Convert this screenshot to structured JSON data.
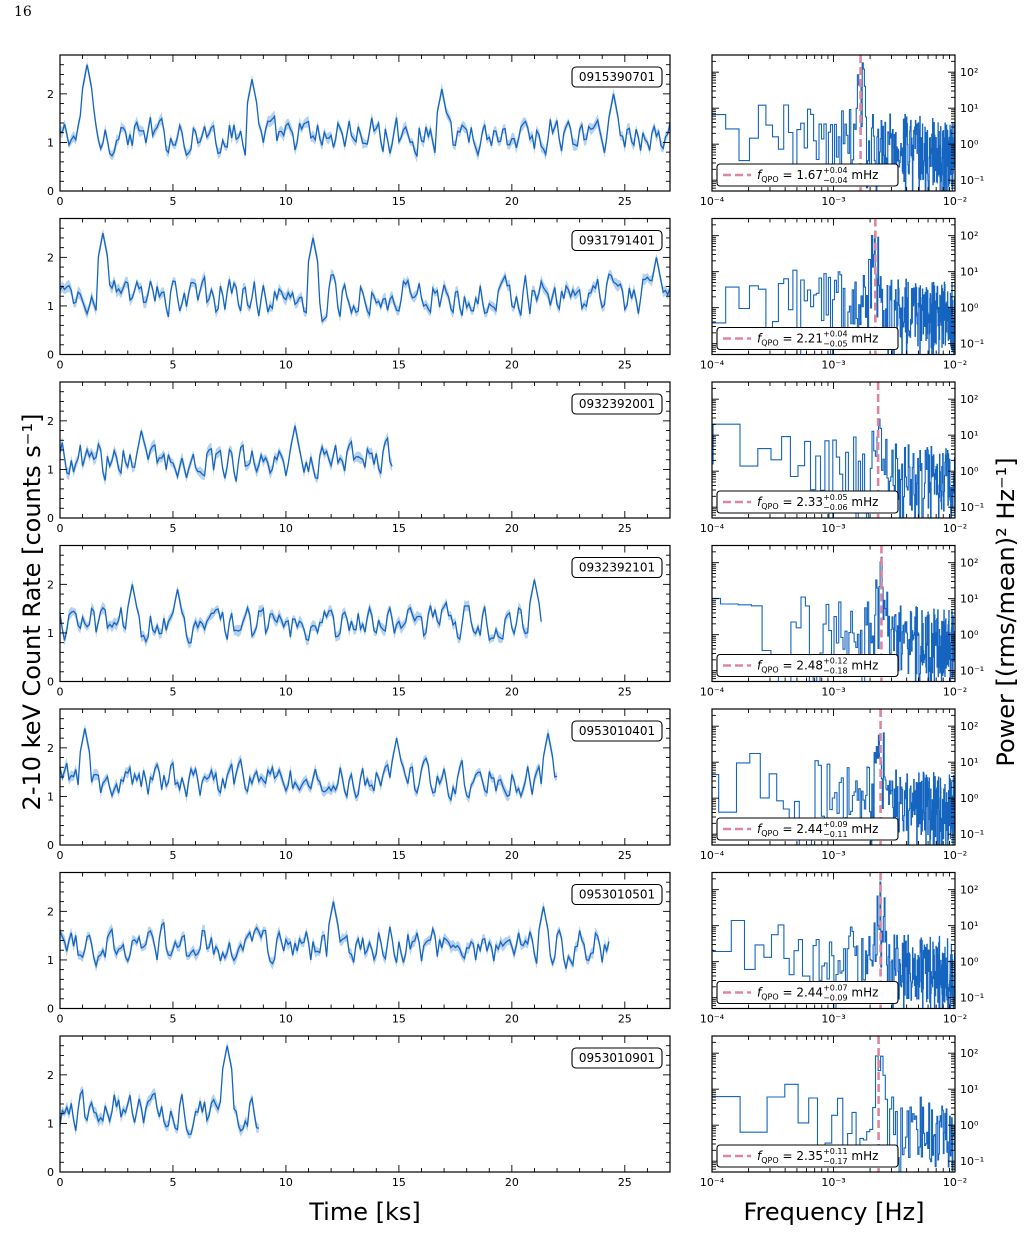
{
  "page": {
    "number": "16"
  },
  "colors": {
    "series": "#1565c0",
    "band": "#9fc3ea",
    "qpo": "#e0859f"
  },
  "axes": {
    "time_label": "Time [ks]",
    "freq_label": "Frequency [Hz]",
    "rate_label": "2-10 keV Count Rate [counts s⁻¹]",
    "power_label": "Power [(rms/mean)² Hz⁻¹]"
  },
  "chart_data": [
    {
      "type": "line",
      "subplot": "light-curves",
      "x_label": "Time [ks]",
      "y_label": "2-10 keV Count Rate [counts s⁻¹]",
      "xlim": [
        0,
        27
      ],
      "ylim": [
        0,
        2.8
      ],
      "x_ticks": [
        0,
        5,
        10,
        15,
        20,
        25
      ],
      "y_ticks": [
        0,
        1,
        2
      ],
      "series": [
        {
          "name": "0915390701",
          "duration": 27,
          "mean": 1.15,
          "spikes": [
            [
              1.2,
              2.6
            ],
            [
              8.5,
              2.3
            ],
            [
              16.9,
              2.1
            ],
            [
              24.5,
              2.0
            ]
          ]
        },
        {
          "name": "0931791401",
          "duration": 27,
          "mean": 1.2,
          "spikes": [
            [
              1.9,
              2.5
            ],
            [
              11.2,
              2.4
            ],
            [
              26.4,
              2.0
            ]
          ]
        },
        {
          "name": "0932392001",
          "duration": 14.7,
          "mean": 1.2,
          "spikes": [
            [
              3.6,
              1.8
            ],
            [
              10.4,
              1.9
            ]
          ]
        },
        {
          "name": "0932392101",
          "duration": 21.3,
          "mean": 1.2,
          "spikes": [
            [
              3.2,
              2.0
            ],
            [
              5.2,
              1.9
            ],
            [
              21.0,
              2.1
            ]
          ]
        },
        {
          "name": "0953010401",
          "duration": 22.0,
          "mean": 1.35,
          "spikes": [
            [
              1.1,
              2.4
            ],
            [
              14.9,
              2.2
            ],
            [
              21.6,
              2.3
            ]
          ]
        },
        {
          "name": "0953010501",
          "duration": 24.3,
          "mean": 1.3,
          "spikes": [
            [
              12.1,
              2.2
            ],
            [
              21.4,
              2.1
            ]
          ]
        },
        {
          "name": "0953010901",
          "duration": 8.8,
          "mean": 1.25,
          "spikes": [
            [
              7.4,
              2.6
            ]
          ]
        }
      ]
    },
    {
      "type": "line",
      "subplot": "power-spectra",
      "x_label": "Frequency [Hz]",
      "y_label": "Power [(rms/mean)² Hz⁻¹]",
      "x_scale": "log",
      "y_scale": "log",
      "xlim": [
        0.0001,
        0.01
      ],
      "ylim": [
        0.05,
        300
      ],
      "x_ticks": [
        "10⁻⁴",
        "10⁻³",
        "10⁻²"
      ],
      "y_ticks": [
        "10⁻¹",
        "10⁰",
        "10¹",
        "10²"
      ],
      "legend_position": "lower-left",
      "series": [
        {
          "name": "0915390701",
          "qpo_mhz": "1.67",
          "err_up": "+0.04",
          "err_down": "−0.04",
          "qpo_hz": 0.00167
        },
        {
          "name": "0931791401",
          "qpo_mhz": "2.21",
          "err_up": "+0.04",
          "err_down": "−0.05",
          "qpo_hz": 0.00221
        },
        {
          "name": "0932392001",
          "qpo_mhz": "2.33",
          "err_up": "+0.05",
          "err_down": "−0.06",
          "qpo_hz": 0.00233
        },
        {
          "name": "0932392101",
          "qpo_mhz": "2.48",
          "err_up": "+0.12",
          "err_down": "−0.18",
          "qpo_hz": 0.00248
        },
        {
          "name": "0953010401",
          "qpo_mhz": "2.44",
          "err_up": "+0.09",
          "err_down": "−0.11",
          "qpo_hz": 0.00244
        },
        {
          "name": "0953010501",
          "qpo_mhz": "2.44",
          "err_up": "+0.07",
          "err_down": "−0.09",
          "qpo_hz": 0.00244
        },
        {
          "name": "0953010901",
          "qpo_mhz": "2.35",
          "err_up": "+0.11",
          "err_down": "−0.17",
          "qpo_hz": 0.00235
        }
      ]
    }
  ]
}
